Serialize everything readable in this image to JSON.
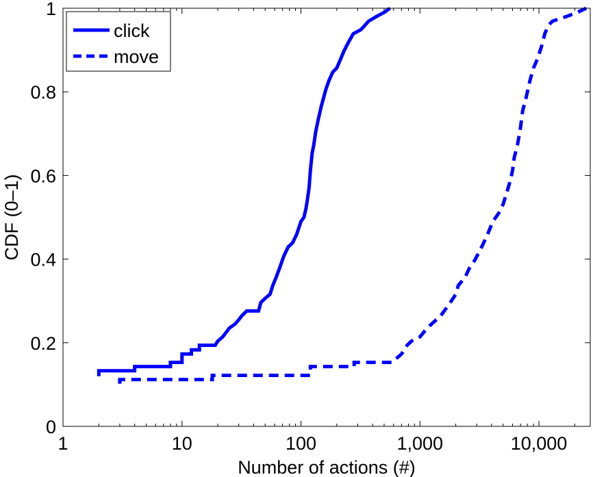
{
  "chart_data": {
    "type": "line",
    "title": "",
    "xlabel": "Number of actions (#)",
    "ylabel": "CDF (0–1)",
    "xscale": "log",
    "xlim": [
      1,
      27000
    ],
    "ylim": [
      0,
      1
    ],
    "grid": false,
    "legend_position": "top-left",
    "x_ticks": [
      {
        "value": 1,
        "label": "1"
      },
      {
        "value": 10,
        "label": "10"
      },
      {
        "value": 100,
        "label": "100"
      },
      {
        "value": 1000,
        "label": "1,000"
      },
      {
        "value": 10000,
        "label": "10,000"
      }
    ],
    "y_ticks": [
      {
        "value": 0,
        "label": "0"
      },
      {
        "value": 0.2,
        "label": "0.2"
      },
      {
        "value": 0.4,
        "label": "0.4"
      },
      {
        "value": 0.6,
        "label": "0.6"
      },
      {
        "value": 0.8,
        "label": "0.8"
      },
      {
        "value": 1,
        "label": "1"
      }
    ],
    "series": [
      {
        "name": "click",
        "style": "solid",
        "color": "#0000ff",
        "points": [
          [
            2,
            0.12
          ],
          [
            2,
            0.133
          ],
          [
            4,
            0.133
          ],
          [
            4,
            0.143
          ],
          [
            8,
            0.143
          ],
          [
            8,
            0.153
          ],
          [
            10,
            0.153
          ],
          [
            10,
            0.173
          ],
          [
            12,
            0.173
          ],
          [
            12,
            0.183
          ],
          [
            14,
            0.183
          ],
          [
            14,
            0.194
          ],
          [
            19,
            0.194
          ],
          [
            20,
            0.204
          ],
          [
            22,
            0.214
          ],
          [
            25,
            0.235
          ],
          [
            28,
            0.245
          ],
          [
            30,
            0.255
          ],
          [
            32,
            0.265
          ],
          [
            35,
            0.276
          ],
          [
            44,
            0.276
          ],
          [
            46,
            0.296
          ],
          [
            50,
            0.306
          ],
          [
            55,
            0.316
          ],
          [
            58,
            0.337
          ],
          [
            62,
            0.357
          ],
          [
            66,
            0.378
          ],
          [
            72,
            0.408
          ],
          [
            78,
            0.429
          ],
          [
            85,
            0.439
          ],
          [
            92,
            0.459
          ],
          [
            100,
            0.49
          ],
          [
            106,
            0.5
          ],
          [
            110,
            0.52
          ],
          [
            113,
            0.54
          ],
          [
            117,
            0.571
          ],
          [
            120,
            0.612
          ],
          [
            124,
            0.653
          ],
          [
            128,
            0.673
          ],
          [
            133,
            0.704
          ],
          [
            140,
            0.735
          ],
          [
            148,
            0.765
          ],
          [
            155,
            0.786
          ],
          [
            162,
            0.806
          ],
          [
            172,
            0.827
          ],
          [
            185,
            0.847
          ],
          [
            200,
            0.857
          ],
          [
            215,
            0.878
          ],
          [
            230,
            0.898
          ],
          [
            250,
            0.918
          ],
          [
            275,
            0.939
          ],
          [
            320,
            0.949
          ],
          [
            370,
            0.969
          ],
          [
            430,
            0.98
          ],
          [
            500,
            0.99
          ],
          [
            560,
            1.0
          ]
        ]
      },
      {
        "name": "move",
        "style": "dashed",
        "color": "#0000ff",
        "points": [
          [
            3,
            0.102
          ],
          [
            3,
            0.112
          ],
          [
            18,
            0.112
          ],
          [
            18,
            0.122
          ],
          [
            120,
            0.122
          ],
          [
            120,
            0.143
          ],
          [
            280,
            0.143
          ],
          [
            280,
            0.153
          ],
          [
            580,
            0.153
          ],
          [
            700,
            0.173
          ],
          [
            780,
            0.194
          ],
          [
            850,
            0.204
          ],
          [
            1000,
            0.214
          ],
          [
            1150,
            0.235
          ],
          [
            1500,
            0.265
          ],
          [
            1800,
            0.296
          ],
          [
            2000,
            0.316
          ],
          [
            2100,
            0.337
          ],
          [
            2400,
            0.357
          ],
          [
            2600,
            0.378
          ],
          [
            2900,
            0.398
          ],
          [
            3300,
            0.429
          ],
          [
            3700,
            0.459
          ],
          [
            4100,
            0.49
          ],
          [
            4600,
            0.51
          ],
          [
            5000,
            0.531
          ],
          [
            5400,
            0.561
          ],
          [
            5800,
            0.592
          ],
          [
            6000,
            0.612
          ],
          [
            6200,
            0.643
          ],
          [
            6600,
            0.673
          ],
          [
            7000,
            0.714
          ],
          [
            7300,
            0.755
          ],
          [
            7800,
            0.786
          ],
          [
            8400,
            0.827
          ],
          [
            9000,
            0.857
          ],
          [
            9700,
            0.878
          ],
          [
            10500,
            0.908
          ],
          [
            11200,
            0.939
          ],
          [
            12000,
            0.959
          ],
          [
            13000,
            0.969
          ],
          [
            17000,
            0.98
          ],
          [
            21000,
            0.99
          ],
          [
            25000,
            1.0
          ]
        ]
      }
    ]
  }
}
